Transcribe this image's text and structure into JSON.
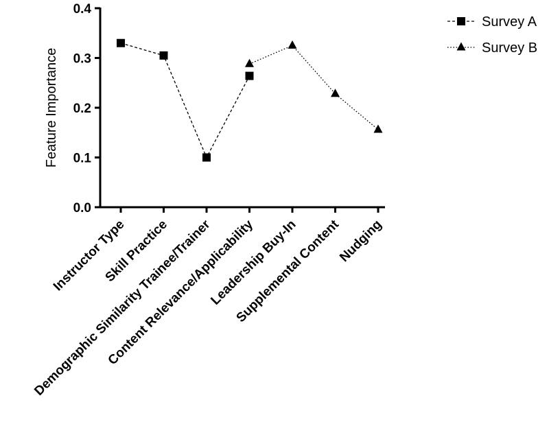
{
  "chart_data": {
    "type": "line",
    "ylabel": "Feature Importance",
    "xlabel": "",
    "categories": [
      "Instructor Type",
      "Skill Practice",
      "Demographic Similarity Trainee/Trainer",
      "Content Relevance/Applicability",
      "Leadership Buy-In",
      "Supplemental Content",
      "Nudging"
    ],
    "ylim": [
      0,
      0.4
    ],
    "yticks": [
      "0.0",
      "0.1",
      "0.2",
      "0.3",
      "0.4"
    ],
    "ytick_values": [
      0,
      0.1,
      0.2,
      0.3,
      0.4
    ],
    "grid": false,
    "legend_position": "top-right",
    "series": [
      {
        "name": "Survey A",
        "marker": "square",
        "line_style": "dashed",
        "color": "#000000",
        "values": [
          0.33,
          0.305,
          0.1,
          0.264,
          null,
          null,
          null
        ]
      },
      {
        "name": "Survey B",
        "marker": "triangle",
        "line_style": "dotted",
        "color": "#000000",
        "values": [
          null,
          null,
          null,
          0.288,
          0.325,
          0.228,
          0.156
        ]
      }
    ]
  }
}
